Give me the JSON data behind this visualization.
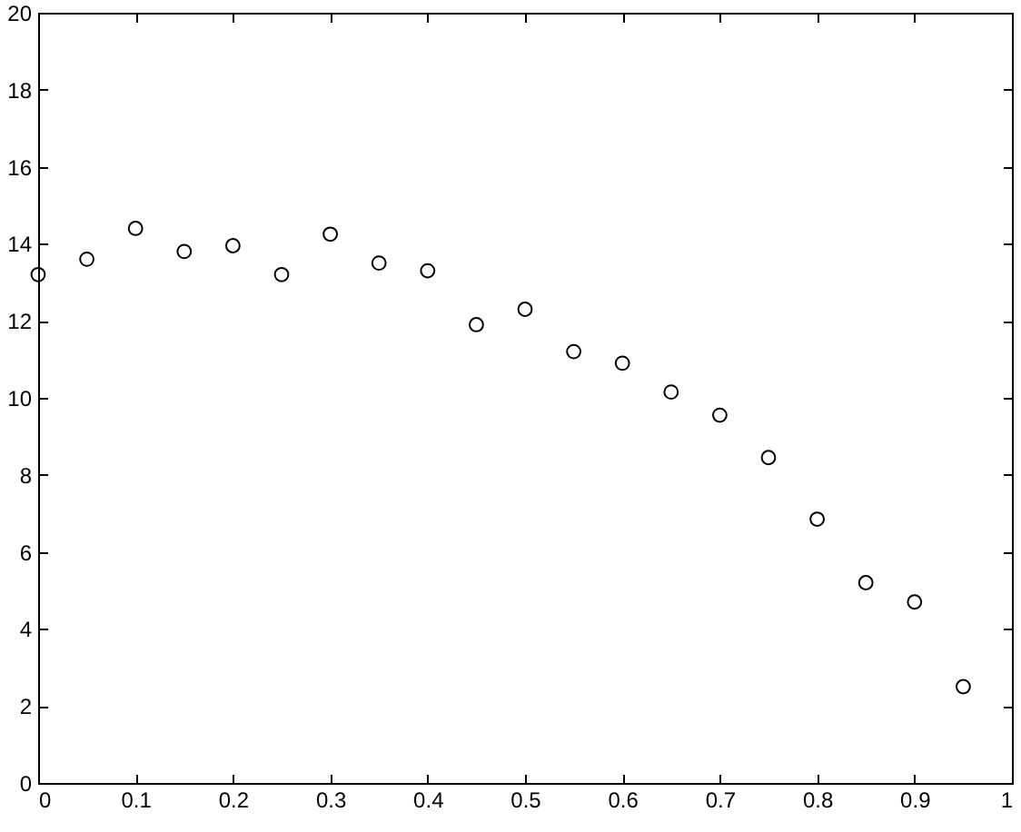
{
  "chart_data": {
    "type": "scatter",
    "x": [
      0,
      0.05,
      0.1,
      0.15,
      0.2,
      0.25,
      0.3,
      0.35,
      0.4,
      0.45,
      0.5,
      0.55,
      0.6,
      0.65,
      0.7,
      0.75,
      0.8,
      0.85,
      0.9,
      0.95
    ],
    "series": [
      {
        "color": "#000000",
        "values": [
          13.2,
          13.6,
          14.4,
          13.8,
          13.95,
          13.2,
          14.25,
          13.5,
          13.3,
          11.9,
          12.3,
          11.2,
          10.9,
          10.15,
          9.55,
          8.45,
          6.85,
          5.2,
          4.7,
          2.5
        ]
      }
    ],
    "marker": "circle",
    "xlim": [
      0,
      1
    ],
    "xticks": [
      0,
      0.1,
      0.2,
      0.3,
      0.4,
      0.5,
      0.6,
      0.7,
      0.8,
      0.9,
      1
    ],
    "ylim": [
      0,
      20
    ],
    "yticks": [
      0,
      2,
      4,
      6,
      8,
      10,
      12,
      14,
      16,
      18,
      20
    ]
  }
}
